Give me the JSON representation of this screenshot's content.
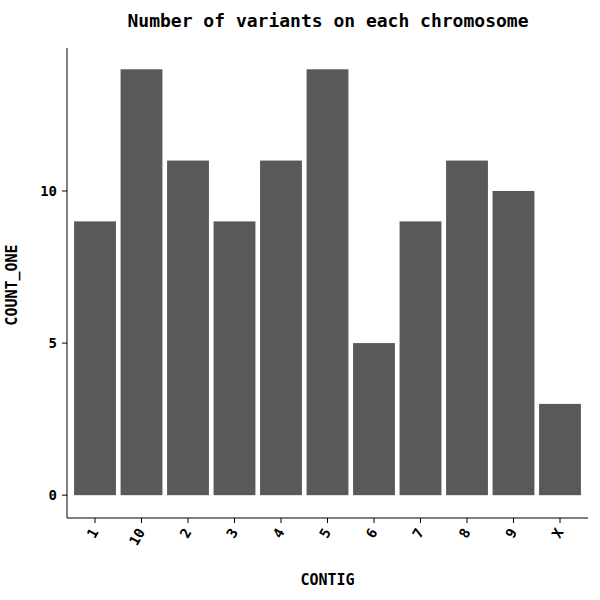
{
  "chart_data": {
    "type": "bar",
    "title": "Number of variants on each chromosome",
    "x_label": "CONTIG",
    "y_label": "COUNT_ONE",
    "categories": [
      "1",
      "10",
      "2",
      "3",
      "4",
      "5",
      "6",
      "7",
      "8",
      "9",
      "X"
    ],
    "values": [
      9,
      14,
      11,
      9,
      11,
      14,
      5,
      9,
      11,
      10,
      3
    ],
    "color": "#595959",
    "ylim": [
      -0.75,
      14.7
    ],
    "yticks": [
      0,
      5,
      10
    ],
    "grid": false
  }
}
